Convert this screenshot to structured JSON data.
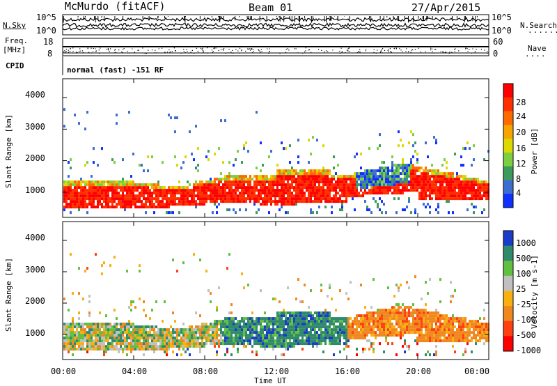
{
  "header": {
    "station": "McMurdo (fitACF)",
    "beam": "Beam 01",
    "date": "27/Apr/2015"
  },
  "top_panel": {
    "left_label": "N.Sky",
    "right_label": "N.Search",
    "left_ticks": [
      "10^5",
      "10^0"
    ],
    "right_ticks": [
      "10^5",
      "10^0"
    ]
  },
  "freq_panel": {
    "left_label_1": "Freq.",
    "left_label_2": "[MHz]",
    "right_label": "Nave",
    "left_ticks": [
      "18",
      "8"
    ],
    "right_ticks": [
      "60",
      "0"
    ]
  },
  "cpid": {
    "label": "CPID",
    "value": "normal (fast) -151 RF"
  },
  "chart_data": [
    {
      "type": "heatmap",
      "name": "power",
      "ylabel": "Slant Range [km]",
      "yticks": [
        "4000",
        "3000",
        "2000",
        "1000"
      ],
      "ylim": [
        200,
        4600
      ],
      "xlabel": "",
      "colorbar_label": "Power [dB]",
      "colorbar_ticks": [
        "28",
        "24",
        "20",
        "16",
        "12",
        "8",
        "4"
      ],
      "colorbar_colors": [
        "#ff0000",
        "#ff3000",
        "#ff6a00",
        "#f6a400",
        "#dcd800",
        "#7cd040",
        "#3c9a5a",
        "#3c6ed0",
        "#1030ff"
      ]
    },
    {
      "type": "heatmap",
      "name": "velocity",
      "ylabel": "Slant Range [km]",
      "yticks": [
        "4000",
        "3000",
        "2000",
        "1000"
      ],
      "ylim": [
        200,
        4600
      ],
      "xlabel": "Time UT",
      "xticks": [
        "00:00",
        "04:00",
        "08:00",
        "12:00",
        "16:00",
        "20:00",
        "00:00"
      ],
      "colorbar_label": "Velocity [m s-1]",
      "colorbar_ticks": [
        "1000",
        "500",
        "100",
        "25",
        "-25",
        "-100",
        "-500",
        "-1000"
      ],
      "colorbar_colors": [
        "#1a3cc8",
        "#2e8a6a",
        "#62c040",
        "#c0c0c0",
        "#f8b010",
        "#f08820",
        "#ff4010",
        "#ff0000"
      ]
    }
  ]
}
